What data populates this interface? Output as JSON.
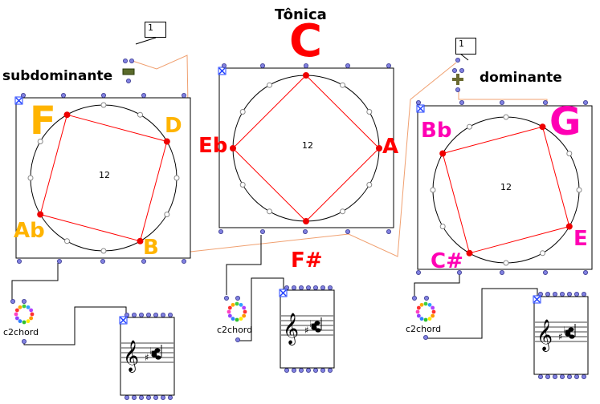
{
  "title": "Tônica",
  "center_value": "12",
  "panels": {
    "tonic": {
      "root": "C",
      "root_color": "#ff0000",
      "label_color": "#ff0000",
      "labels": {
        "left": "Eb",
        "right": "A",
        "bottom": "F#"
      }
    },
    "subdominant": {
      "heading": "subdominante",
      "root": "F",
      "root_color": "#ffb400",
      "labels": {
        "tr": "D",
        "bl": "Ab",
        "br": "B"
      }
    },
    "dominant": {
      "heading": "dominante",
      "root": "G",
      "root_color": "#ff00b4",
      "labels": {
        "tl": "Bb",
        "br": "E",
        "bl": "C#"
      }
    }
  },
  "number_boxes": {
    "left": "1",
    "right": "1"
  },
  "c2chord_label": "c2chord",
  "colors": {
    "polygon": "#ff0000",
    "patch_cord": "#f0a070",
    "inlet": "#8080e0",
    "point": "#ee0000"
  },
  "icons": [
    "minus-operator-icon",
    "plus-operator-icon",
    "x-close-icon",
    "treble-clef-icon",
    "chord-wheel-icon"
  ]
}
